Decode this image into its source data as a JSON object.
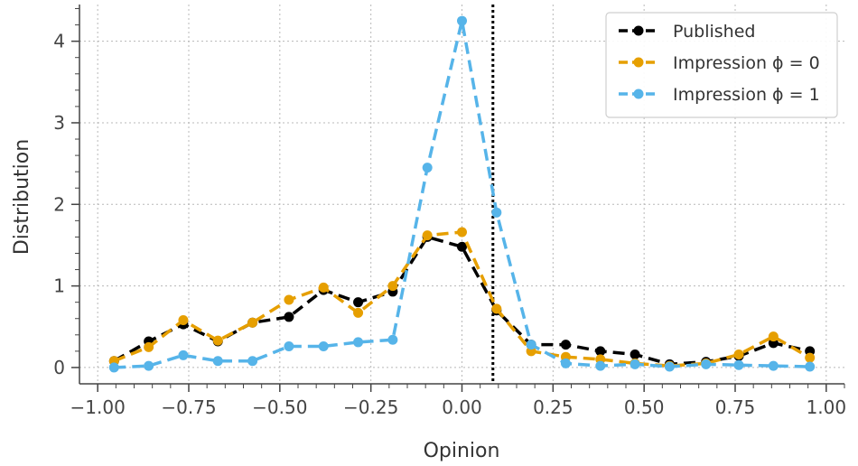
{
  "chart_data": {
    "type": "line",
    "xlabel": "Opinion",
    "ylabel": "Distribution",
    "xlim": [
      -1.05,
      1.05
    ],
    "ylim": [
      -0.2,
      4.45
    ],
    "xticks": [
      -1.0,
      -0.75,
      -0.5,
      -0.25,
      0.0,
      0.25,
      0.5,
      0.75,
      1.0
    ],
    "xtick_labels": [
      "−1.00",
      "−0.75",
      "−0.50",
      "−0.25",
      "0.00",
      "0.25",
      "0.50",
      "0.75",
      "1.00"
    ],
    "yticks": [
      0,
      1,
      2,
      3,
      4
    ],
    "ytick_labels": [
      "0",
      "1",
      "2",
      "3",
      "4"
    ],
    "grid": true,
    "legend_position": "top-right",
    "vline": {
      "x": 0.085,
      "style": "dotted",
      "color": "#000000"
    },
    "x": [
      -0.955,
      -0.86,
      -0.765,
      -0.67,
      -0.575,
      -0.475,
      -0.38,
      -0.285,
      -0.19,
      -0.095,
      0.0,
      0.095,
      0.19,
      0.285,
      0.38,
      0.475,
      0.57,
      0.67,
      0.76,
      0.855,
      0.955
    ],
    "series": [
      {
        "name": "Published",
        "color": "#000000",
        "values": [
          0.08,
          0.32,
          0.53,
          0.32,
          0.55,
          0.62,
          0.95,
          0.8,
          0.93,
          1.6,
          1.48,
          0.7,
          0.28,
          0.28,
          0.2,
          0.16,
          0.04,
          0.07,
          0.14,
          0.3,
          0.2
        ]
      },
      {
        "name": "Impression ϕ = 0",
        "color": "#E69F00",
        "values": [
          0.08,
          0.25,
          0.58,
          0.33,
          0.55,
          0.83,
          0.98,
          0.67,
          1.0,
          1.62,
          1.66,
          0.72,
          0.2,
          0.13,
          0.1,
          0.05,
          0.02,
          0.05,
          0.16,
          0.38,
          0.12
        ]
      },
      {
        "name": "Impression ϕ = 1",
        "color": "#56B4E9",
        "values": [
          0.0,
          0.02,
          0.15,
          0.08,
          0.08,
          0.26,
          0.26,
          0.31,
          0.34,
          2.45,
          4.25,
          1.9,
          0.28,
          0.05,
          0.02,
          0.04,
          0.01,
          0.04,
          0.03,
          0.02,
          0.01
        ]
      }
    ]
  }
}
